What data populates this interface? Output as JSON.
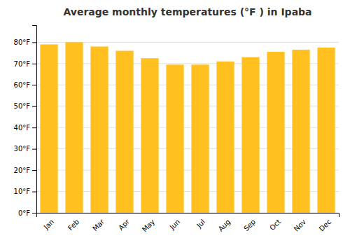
{
  "chart_data": {
    "type": "bar",
    "title": "Average monthly temperatures (°F ) in Ipaba",
    "categories": [
      "Jan",
      "Feb",
      "Mar",
      "Apr",
      "May",
      "Jun",
      "Jul",
      "Aug",
      "Sep",
      "Oct",
      "Nov",
      "Dec"
    ],
    "values": [
      79.0,
      80.0,
      78.0,
      76.0,
      72.5,
      69.5,
      69.5,
      71.0,
      73.0,
      75.5,
      76.5,
      77.5
    ],
    "color": "#FFC020",
    "ylim": [
      0,
      88
    ],
    "yticks": [
      {
        "value": 0,
        "label": "0°F"
      },
      {
        "value": 10,
        "label": "10°F"
      },
      {
        "value": 20,
        "label": "20°F"
      },
      {
        "value": 30,
        "label": "30°F"
      },
      {
        "value": 40,
        "label": "40°F"
      },
      {
        "value": 50,
        "label": "50°F"
      },
      {
        "value": 60,
        "label": "60°F"
      },
      {
        "value": 70,
        "label": "70°F"
      },
      {
        "value": 80,
        "label": "80°F"
      }
    ],
    "grid": true
  }
}
